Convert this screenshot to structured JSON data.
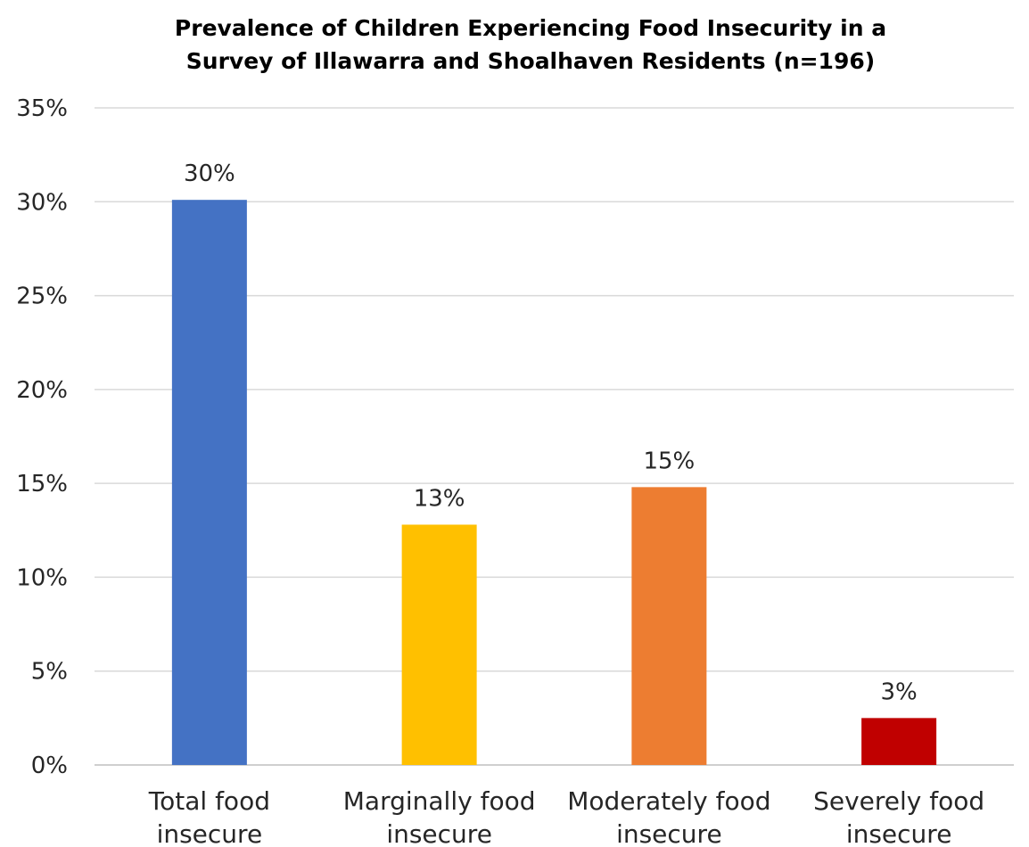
{
  "chart_data": {
    "type": "bar",
    "title": "Prevalence of Children Experiencing Food Insecurity in a Survey of Illawarra and Shoalhaven Residents (n=196)",
    "title_lines": [
      "Prevalence of Children Experiencing Food Insecurity in a",
      "Survey of Illawarra and Shoalhaven Residents (n=196)"
    ],
    "xlabel": "",
    "ylabel": "",
    "ylim": [
      0,
      35
    ],
    "y_ticks": [
      0,
      5,
      10,
      15,
      20,
      25,
      30,
      35
    ],
    "y_tick_labels": [
      "0%",
      "5%",
      "10%",
      "15%",
      "20%",
      "25%",
      "30%",
      "35%"
    ],
    "grid": true,
    "legend": "none",
    "categories": [
      "Total food insecure",
      "Marginally food insecure",
      "Moderately food insecure",
      "Severely food insecure"
    ],
    "category_lines": [
      [
        "Total food",
        "insecure"
      ],
      [
        "Marginally food",
        "insecure"
      ],
      [
        "Moderately food",
        "insecure"
      ],
      [
        "Severely food",
        "insecure"
      ]
    ],
    "values": [
      30.1,
      12.8,
      14.8,
      2.5
    ],
    "data_labels": [
      "30%",
      "13%",
      "15%",
      "3%"
    ],
    "colors": [
      "#4472C4",
      "#FFC000",
      "#ED7D31",
      "#C00000"
    ]
  }
}
